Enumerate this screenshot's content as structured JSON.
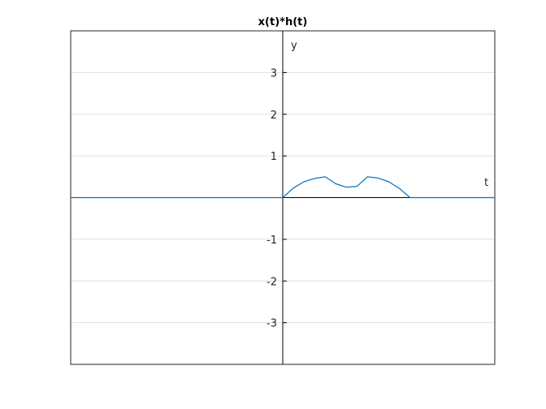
{
  "chart_data": {
    "type": "line",
    "title": "x(t)*h(t)",
    "xlabel": "t",
    "ylabel": "y",
    "xlim": [
      -5,
      5
    ],
    "ylim": [
      -4,
      4
    ],
    "yticks": [
      -3,
      -2,
      -1,
      1,
      2,
      3
    ],
    "grid": true,
    "axes_through_origin": true,
    "colors": {
      "series": "#0072bd",
      "axes": "#000000",
      "grid": "#e0e0e0"
    },
    "series": [
      {
        "x": [
          -5,
          -3,
          -1,
          0,
          0.25,
          0.5,
          0.75,
          1,
          1.25,
          1.5,
          1.75,
          2,
          2.25,
          2.5,
          2.75,
          3,
          3.25,
          5
        ],
        "y": [
          0,
          0,
          0,
          0,
          0.23,
          0.38,
          0.46,
          0.5,
          0.33,
          0.25,
          0.27,
          0.5,
          0.47,
          0.38,
          0.22,
          0,
          0,
          0
        ]
      }
    ]
  }
}
